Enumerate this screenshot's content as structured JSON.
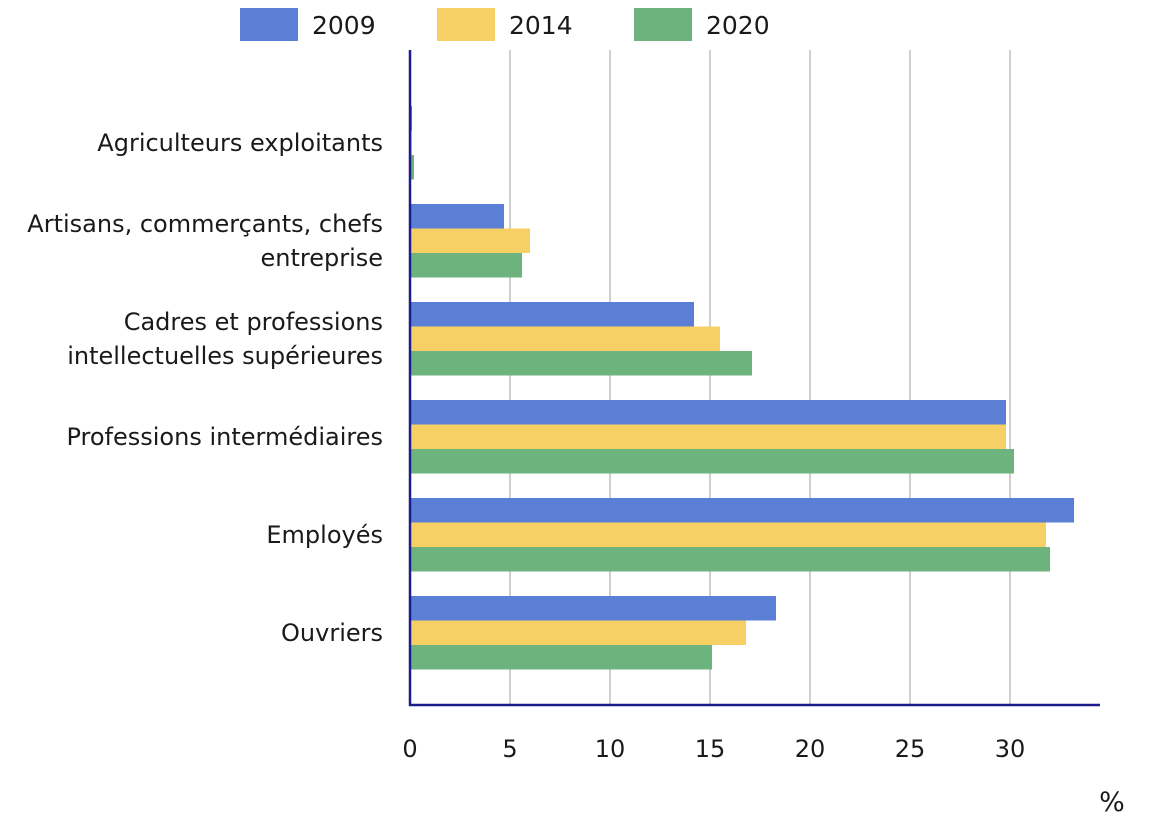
{
  "chart_data": {
    "type": "bar",
    "orientation": "horizontal",
    "unit": "%",
    "categories": [
      [
        "Agriculteurs exploitants"
      ],
      [
        "Artisans, commerçants, chefs",
        "entreprise"
      ],
      [
        "Cadres et professions",
        "intellectuelles supérieures"
      ],
      [
        "Professions intermédiaires"
      ],
      [
        "Employés"
      ],
      [
        "Ouvriers"
      ]
    ],
    "series": [
      {
        "name": "2009",
        "color": "#5b7fd4",
        "values": [
          0.1,
          4.7,
          14.2,
          29.8,
          33.2,
          18.3
        ]
      },
      {
        "name": "2014",
        "color": "#f7d065",
        "values": [
          0.1,
          6.0,
          15.5,
          29.8,
          31.8,
          16.8
        ]
      },
      {
        "name": "2020",
        "color": "#6db37e",
        "values": [
          0.2,
          5.6,
          17.1,
          30.2,
          32.0,
          15.1
        ]
      }
    ],
    "xlim": [
      0,
      34.5
    ],
    "xticks": [
      "0",
      "5",
      "10",
      "15",
      "20",
      "25",
      "30"
    ],
    "grid": true,
    "legend_position": "top",
    "axis_color": "#1c1c8c",
    "grid_color": "#b5b5b5"
  }
}
